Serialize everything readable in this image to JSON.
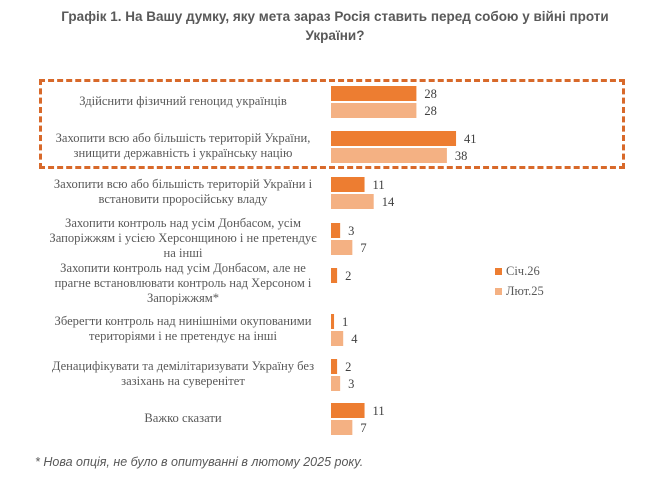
{
  "chart_data": {
    "type": "bar",
    "orientation": "horizontal",
    "title": "Графік 1. На Вашу думку, яку мета зараз Росія ставить перед собою у війні проти України?",
    "categories": [
      "Здійснити фізичний геноцид українців",
      "Захопити всю або більшість територій України, знищити державність і українську націю",
      "Захопити всю або більшість територій України і встановити проросійську владу",
      "Захопити контроль над усім Донбасом, усім Запоріжжям і усією Херсонщиною і не претендує на інші",
      "Захопити контроль над усім Донбасом, але не прагне встановлювати контроль над Херсоном і Запоріжжям*",
      "Зберегти контроль над нинішніми окупованими територіями і не претендує на інші",
      "Денацифікувати та демілітаризувати Україну без зазіхань на суверенітет",
      "Важко сказати"
    ],
    "category_lines": [
      [
        "Здійснити фізичний геноцид українців"
      ],
      [
        "Захопити всю або більшість територій України,",
        "знищити державність і українську націю"
      ],
      [
        "Захопити всю або більшість територій України і",
        "встановити проросійську владу"
      ],
      [
        "Захопити контроль над усім Донбасом, усім",
        "Запоріжжям і усією Херсонщиною і не претендує",
        "на інші"
      ],
      [
        "Захопити контроль над усім Донбасом, але не",
        "прагне встановлювати контроль над Херсоном і",
        "Запоріжжям*"
      ],
      [
        "Зберегти контроль над нинішніми окупованими",
        "територіями і не претендує на інші"
      ],
      [
        "Денацифікувати та демілітаризувати Україну без",
        "зазіхань на суверенітет"
      ],
      [
        "Важко сказати"
      ]
    ],
    "series": [
      {
        "name": "Січ.26",
        "color": "#ed7d31",
        "values": [
          28,
          41,
          11,
          3,
          2,
          1,
          2,
          11
        ]
      },
      {
        "name": "Лют.25",
        "color": "#f4b183",
        "values": [
          28,
          38,
          14,
          7,
          null,
          4,
          3,
          7
        ]
      }
    ],
    "highlighted_categories": [
      0,
      1
    ],
    "highlight_color": "#d8692a",
    "xlim": [
      0,
      45
    ],
    "grid": false,
    "legend_position": "right",
    "xlabel": "",
    "ylabel": ""
  },
  "footnote": "* Нова опція, не було в опитуванні в лютому 2025 року."
}
